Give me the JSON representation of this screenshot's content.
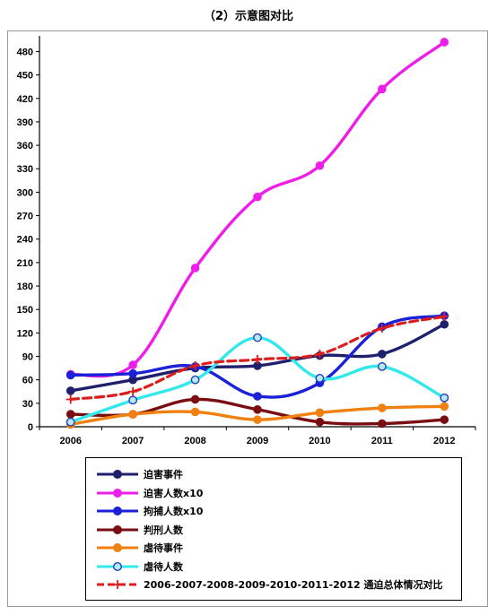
{
  "title": "（2）示意图对比",
  "chart_data": {
    "type": "line",
    "categories": [
      "2006",
      "2007",
      "2008",
      "2009",
      "2010",
      "2011",
      "2012"
    ],
    "ylim": [
      0,
      500
    ],
    "yticks": [
      0,
      30,
      60,
      90,
      120,
      150,
      180,
      210,
      240,
      270,
      300,
      330,
      360,
      390,
      420,
      450,
      480
    ],
    "grid": false,
    "legend_position": "bottom",
    "series": [
      {
        "name": "迫害事件",
        "color": "#1f1f6e",
        "marker": "filled",
        "dashed": false,
        "values": [
          46,
          60,
          75,
          78,
          91,
          93,
          131
        ]
      },
      {
        "name": "迫害人数x10",
        "color": "#ee1ee8",
        "marker": "filled",
        "dashed": false,
        "values": [
          67,
          79,
          203,
          294,
          334,
          432,
          492
        ]
      },
      {
        "name": "拘捕人数x10",
        "color": "#1b21d6",
        "marker": "filled",
        "dashed": false,
        "values": [
          66,
          68,
          77,
          39,
          56,
          128,
          142
        ]
      },
      {
        "name": "判刑人数",
        "color": "#7a0d12",
        "marker": "filled",
        "dashed": false,
        "values": [
          16,
          16,
          35,
          22,
          6,
          4,
          9
        ]
      },
      {
        "name": "虐待事件",
        "color": "#f08010",
        "marker": "filled",
        "dashed": false,
        "values": [
          3,
          16,
          19,
          9,
          18,
          24,
          26
        ]
      },
      {
        "name": "虐待人数",
        "color": "#33e8ea",
        "marker": "hollow",
        "dashed": false,
        "values": [
          6,
          34,
          60,
          114,
          62,
          77,
          37
        ]
      },
      {
        "name": "2006-2007-2008-2009-2010-2011-2012 通迫总体情况对比",
        "color": "#dd1d1d",
        "marker": "plus",
        "dashed": true,
        "values": [
          35,
          45,
          78,
          86,
          93,
          126,
          141
        ]
      }
    ]
  }
}
